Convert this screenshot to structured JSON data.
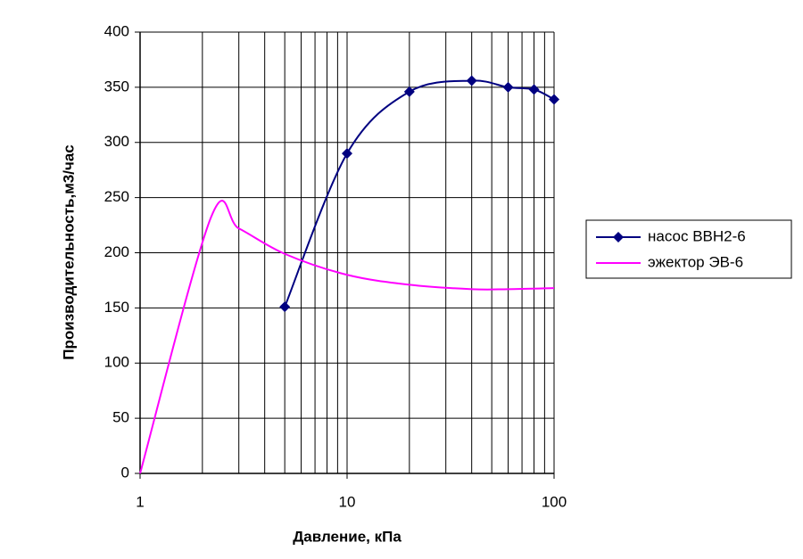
{
  "chart_data": {
    "type": "line",
    "x_label": "Давление, кПа",
    "y_label": "Производительность,м3/час",
    "xscale": "log",
    "xlim": [
      1,
      100
    ],
    "xticks": [
      1,
      10,
      100
    ],
    "ylim": [
      0,
      400
    ],
    "yticks": [
      0,
      50,
      100,
      150,
      200,
      250,
      300,
      350,
      400
    ],
    "grid": true,
    "minor_grid": true,
    "legend": "right",
    "series": [
      {
        "name": "насос ВВН2-6",
        "color": "#000080",
        "marker": "diamond",
        "smooth": true,
        "x": [
          5,
          10,
          20,
          40,
          60,
          80,
          100
        ],
        "values": [
          151,
          290,
          346,
          356,
          350,
          348,
          339
        ]
      },
      {
        "name": "эжектор ЭВ-6",
        "color": "#ff00ff",
        "marker": "none",
        "smooth": true,
        "x": [
          1,
          2.2,
          3,
          5,
          10,
          20,
          40,
          60,
          100
        ],
        "values": [
          0,
          232,
          222,
          199,
          180,
          171,
          167,
          167,
          168
        ]
      }
    ]
  }
}
